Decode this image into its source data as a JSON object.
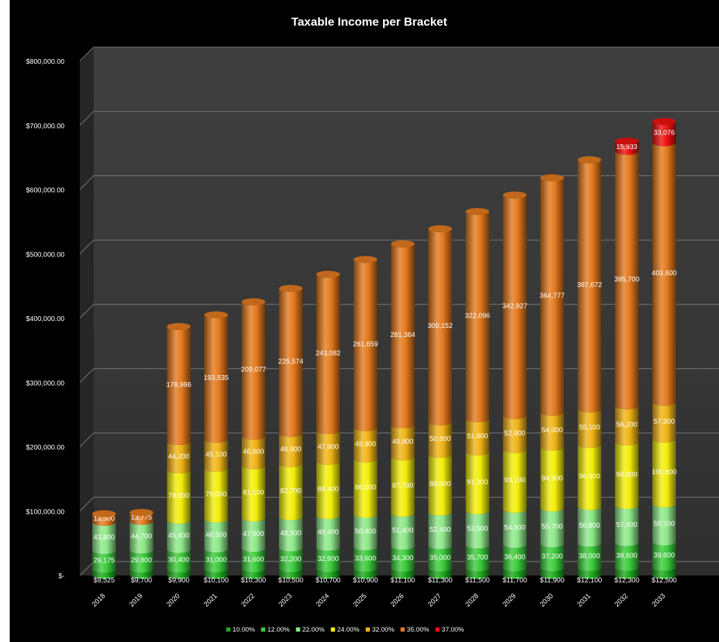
{
  "chart_data": {
    "type": "bar",
    "stacked": true,
    "three_d": true,
    "title": "Taxable Income per Bracket",
    "xlabel": "",
    "ylabel": "",
    "ylim": [
      0,
      800000
    ],
    "y_ticks": [
      {
        "value": 0,
        "label": "$-"
      },
      {
        "value": 100000,
        "label": "$100,000.00"
      },
      {
        "value": 200000,
        "label": "$200,000.00"
      },
      {
        "value": 300000,
        "label": "$300,000.00"
      },
      {
        "value": 400000,
        "label": "$400,000.00"
      },
      {
        "value": 500000,
        "label": "$500,000.00"
      },
      {
        "value": 600000,
        "label": "$600,000.00"
      },
      {
        "value": 700000,
        "label": "$700,000.00"
      },
      {
        "value": 800000,
        "label": "$800,000.00"
      }
    ],
    "grid": true,
    "legend_position": "bottom",
    "categories": [
      "2018",
      "2019",
      "2020",
      "2021",
      "2022",
      "2023",
      "2024",
      "2025",
      "2026",
      "2027",
      "2028",
      "2029",
      "2030",
      "2031",
      "2032",
      "2033"
    ],
    "series": [
      {
        "name": "10.00%",
        "color": "#1fa81f",
        "values": [
          9525,
          9700,
          9900,
          10100,
          10300,
          10500,
          10700,
          10900,
          11100,
          11300,
          11500,
          11700,
          11900,
          12100,
          12300,
          12500
        ],
        "labels": [
          "$9,525",
          "$9,700",
          "$9,900",
          "$10,100",
          "$10,300",
          "$10,500",
          "$10,700",
          "$10,900",
          "$11,100",
          "$11,300",
          "$11,500",
          "$11,700",
          "$11,900",
          "$12,100",
          "$12,300",
          "$12,500"
        ]
      },
      {
        "name": "12.00%",
        "color": "#3ccc3c",
        "values": [
          29175,
          29800,
          30400,
          31000,
          31600,
          32200,
          32900,
          33600,
          34300,
          35000,
          35700,
          36400,
          37200,
          38000,
          38800,
          39600
        ],
        "labels": [
          "29,175",
          "29,800",
          "30,400",
          "31,000",
          "31,600",
          "32,200",
          "32,900",
          "33,600",
          "34,300",
          "35,000",
          "35,700",
          "36,400",
          "37,200",
          "38,000",
          "38,800",
          "39,600"
        ]
      },
      {
        "name": "22.00%",
        "color": "#8fe88a",
        "values": [
          43800,
          44700,
          45600,
          46500,
          47500,
          48500,
          49400,
          50400,
          51400,
          52400,
          53500,
          54600,
          55700,
          56800,
          57600,
          59100
        ],
        "labels": [
          "43,800",
          "44,700",
          "45,600",
          "46,500",
          "47,500",
          "48,500",
          "49,400",
          "50,400",
          "51,400",
          "52,400",
          "53,500",
          "54,600",
          "55,700",
          "56,800",
          "57,600",
          "59,100"
        ]
      },
      {
        "name": "24.00%",
        "color": "#f2ee0a",
        "values": [
          0,
          0,
          78000,
          79000,
          81100,
          82700,
          84400,
          86000,
          87700,
          89500,
          91300,
          93100,
          94900,
          96800,
          98800,
          100800
        ],
        "labels": [
          "",
          "",
          "78,000",
          "79,000",
          "81,100",
          "82,700",
          "84,400",
          "86,000",
          "87,700",
          "89,500",
          "91,300",
          "93,100",
          "94,900",
          "96,800",
          "98,800",
          "100,800"
        ]
      },
      {
        "name": "32.00%",
        "color": "#f0b416",
        "values": [
          0,
          0,
          44200,
          45100,
          46000,
          46900,
          47800,
          48800,
          49800,
          50800,
          51800,
          52900,
          54000,
          55100,
          56200,
          57300
        ],
        "labels": [
          "",
          "",
          "44,200",
          "45,100",
          "46,000",
          "46,900",
          "47,800",
          "48,800",
          "49,800",
          "50,800",
          "51,800",
          "52,900",
          "54,000",
          "55,100",
          "56,200",
          "57,300"
        ]
      },
      {
        "name": "35.00%",
        "color": "#e47a1e",
        "values": [
          13500,
          13775,
          178996,
          193535,
          209077,
          225574,
          243082,
          261659,
          281364,
          300152,
          322096,
          342927,
          364777,
          387672,
          395700,
          403600
        ],
        "labels": [
          "13,500",
          "13,775",
          "178,996",
          "193,535",
          "209,077",
          "225,574",
          "243,082",
          "261,659",
          "281,364",
          "300,152",
          "322,096",
          "342,927",
          "364,777",
          "387,672",
          "395,700",
          "403,600"
        ]
      },
      {
        "name": "37.00%",
        "color": "#ee1111",
        "values": [
          0,
          0,
          0,
          0,
          0,
          0,
          0,
          0,
          0,
          0,
          0,
          0,
          0,
          0,
          15933,
          33076
        ],
        "labels": [
          "",
          "",
          "",
          "",
          "",
          "",
          "",
          "",
          "",
          "",
          "",
          "",
          "",
          "",
          "15,933",
          "33,076"
        ]
      }
    ]
  }
}
